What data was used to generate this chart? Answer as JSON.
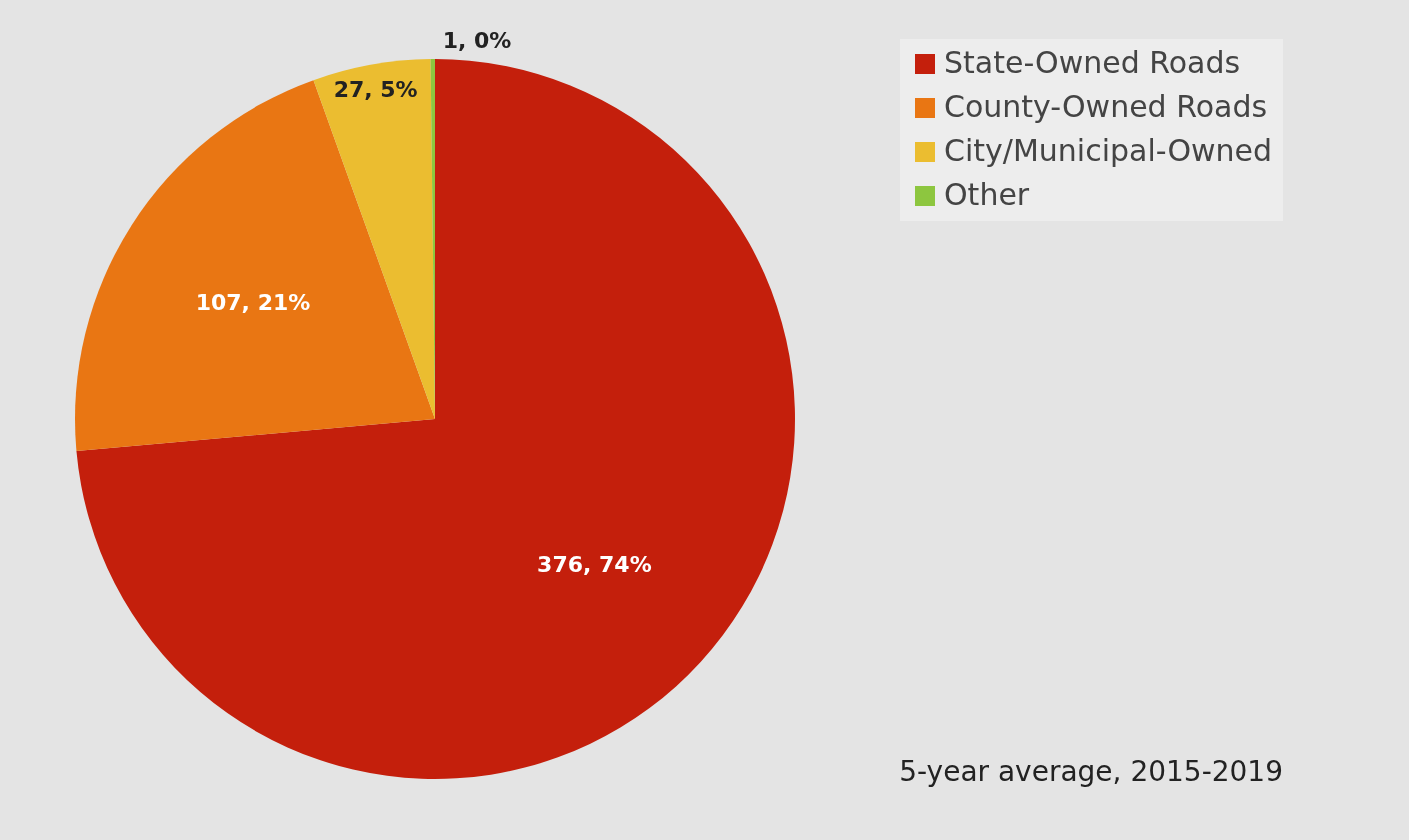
{
  "chart_data": {
    "type": "pie",
    "categories": [
      "State-Owned Roads",
      "County-Owned Roads",
      "City/Municipal-Owned",
      "Other"
    ],
    "values": [
      376,
      107,
      27,
      1
    ],
    "value_labels": [
      "376, 74%",
      "107, 21%",
      "27, 5%",
      "1, 0%"
    ],
    "colors": [
      "#c41f0c",
      "#e97613",
      "#ebbd30",
      "#8dc63f"
    ],
    "legend": "right",
    "annotations": [
      "5-year average, 2015-2019"
    ]
  }
}
